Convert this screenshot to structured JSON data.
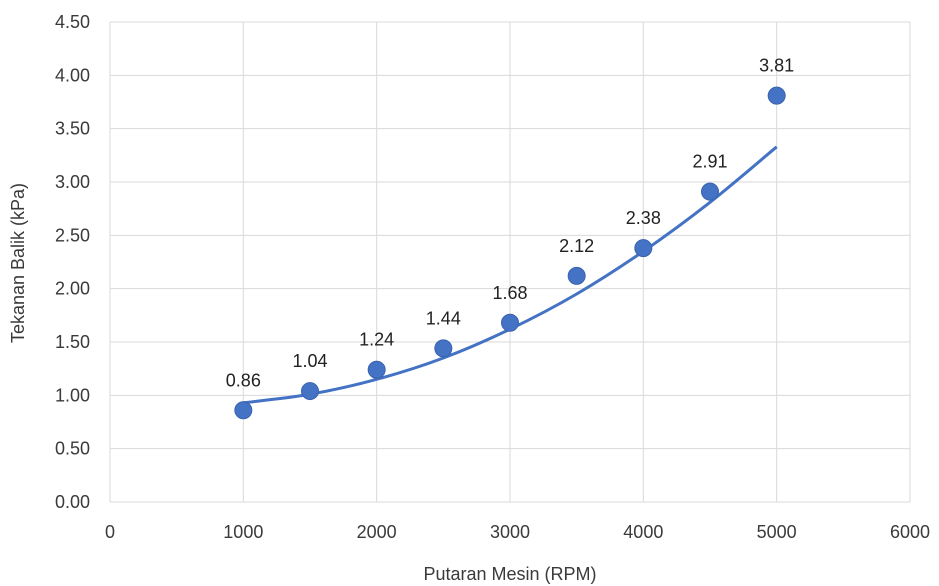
{
  "chart_data": {
    "type": "scatter",
    "title": "",
    "xlabel": "Putaran Mesin (RPM)",
    "ylabel": "Tekanan Balik (kPa)",
    "xlim": [
      0,
      6000
    ],
    "ylim": [
      0,
      4.5
    ],
    "x_ticks": [
      "0",
      "1000",
      "2000",
      "3000",
      "4000",
      "5000",
      "6000"
    ],
    "y_ticks": [
      "0.00",
      "0.50",
      "1.00",
      "1.50",
      "2.00",
      "2.50",
      "3.00",
      "3.50",
      "4.00",
      "4.50"
    ],
    "grid": true,
    "legend": "none",
    "series": [
      {
        "x": [
          1000,
          1500,
          2000,
          2500,
          3000,
          3500,
          4000,
          4500,
          5000
        ],
        "y": [
          0.86,
          1.04,
          1.24,
          1.44,
          1.68,
          2.12,
          2.38,
          2.91,
          3.81
        ],
        "labels": [
          "0.86",
          "1.04",
          "1.24",
          "1.44",
          "1.68",
          "2.12",
          "2.38",
          "2.91",
          "3.81"
        ],
        "color": "#4472c4"
      }
    ],
    "trendline": {
      "type": "polynomial",
      "x": [
        1000,
        1500,
        2000,
        2500,
        3000,
        3500,
        4000,
        4500,
        5000
      ],
      "y": [
        0.93,
        1.01,
        1.15,
        1.35,
        1.62,
        1.95,
        2.35,
        2.81,
        3.33
      ],
      "color": "#4472c4"
    }
  }
}
